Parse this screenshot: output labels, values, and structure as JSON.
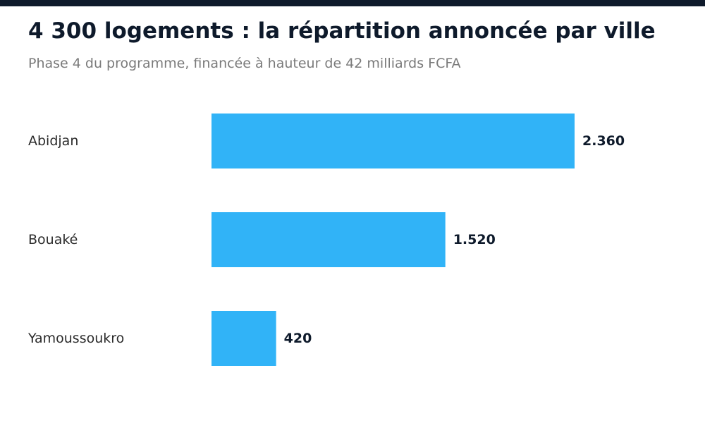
{
  "header": {
    "title": "4 300 logements : la répartition annoncée par ville",
    "subtitle": "Phase 4 du programme, financée à hauteur de 42 milliards FCFA"
  },
  "colors": {
    "bar": "#31b3f7",
    "stripe": "#0e1a2b",
    "title": "#0e1a2b",
    "subtitle": "#7a7a7a"
  },
  "chart_data": {
    "type": "bar",
    "orientation": "horizontal",
    "title": "4 300 logements : la répartition annoncée par ville",
    "subtitle": "Phase 4 du programme, financée à hauteur de 42 milliards FCFA",
    "categories": [
      "Abidjan",
      "Bouaké",
      "Yamoussoukro"
    ],
    "values": [
      2360,
      1520,
      420
    ],
    "value_labels": [
      "2.360",
      "1.520",
      "420"
    ],
    "xlabel": "",
    "ylabel": "",
    "xlim": [
      0,
      2360
    ],
    "grid": false,
    "legend": "none"
  }
}
